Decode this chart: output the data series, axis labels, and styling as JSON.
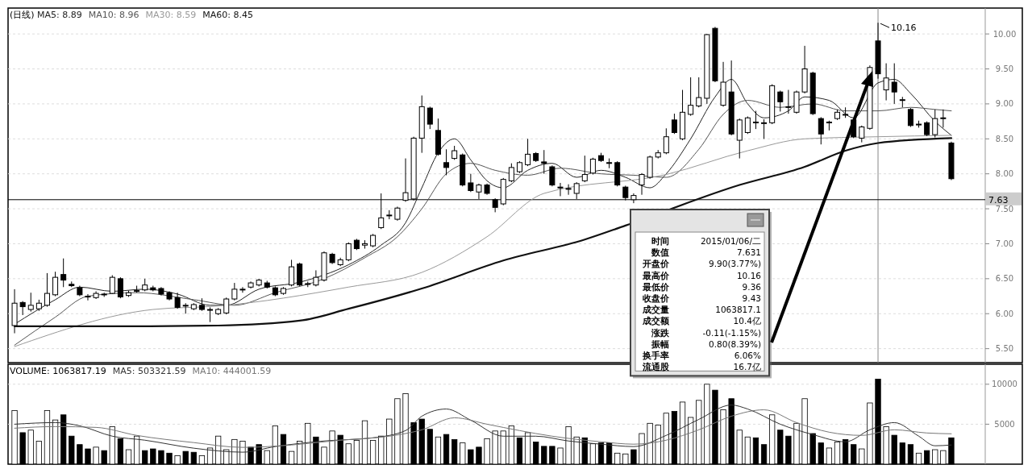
{
  "chart_data": [
    {
      "type": "candlestick",
      "title": "(日线)",
      "categories": [
        null,
        null,
        null,
        null,
        null,
        null,
        null,
        null,
        null,
        null,
        null,
        null,
        null,
        null,
        null,
        null,
        null,
        null,
        null,
        null,
        null,
        null,
        null,
        null,
        null,
        null,
        null,
        null,
        null,
        null,
        null,
        null,
        null,
        null,
        null,
        null,
        null,
        null,
        null,
        null,
        null,
        null,
        null,
        null,
        null,
        null,
        null,
        null,
        null,
        null,
        null,
        null,
        null,
        null,
        null,
        null,
        null,
        null,
        null,
        null,
        null,
        null,
        null,
        null,
        null,
        null,
        null,
        null,
        null,
        null,
        null,
        null,
        null,
        null,
        null,
        null,
        null,
        null,
        null,
        null,
        null,
        null,
        null,
        null,
        null,
        null,
        null,
        null,
        null,
        null,
        null,
        null,
        null,
        null,
        null,
        null,
        null,
        null,
        null,
        null,
        null,
        null,
        null,
        null,
        null,
        null,
        null,
        null,
        null,
        null,
        null,
        null,
        null,
        null,
        null,
        null
      ],
      "ohlc": [
        [
          5.83,
          6.35,
          5.72,
          6.15
        ],
        [
          6.16,
          6.18,
          5.98,
          6.1
        ],
        [
          6.06,
          6.3,
          6.03,
          6.12
        ],
        [
          6.07,
          6.2,
          6.04,
          6.15
        ],
        [
          6.12,
          6.58,
          6.1,
          6.29
        ],
        [
          6.27,
          6.6,
          6.25,
          6.52
        ],
        [
          6.56,
          6.79,
          6.38,
          6.48
        ],
        [
          6.42,
          6.46,
          6.38,
          6.4
        ],
        [
          6.37,
          6.4,
          6.25,
          6.27
        ],
        [
          6.25,
          6.28,
          6.19,
          6.24
        ],
        [
          6.23,
          6.32,
          6.21,
          6.29
        ],
        [
          6.27,
          6.3,
          6.24,
          6.28
        ],
        [
          6.29,
          6.55,
          6.28,
          6.52
        ],
        [
          6.5,
          6.52,
          6.22,
          6.24
        ],
        [
          6.26,
          6.33,
          6.24,
          6.3
        ],
        [
          6.33,
          6.4,
          6.3,
          6.33
        ],
        [
          6.34,
          6.5,
          6.32,
          6.41
        ],
        [
          6.37,
          6.4,
          6.32,
          6.34
        ],
        [
          6.36,
          6.38,
          6.26,
          6.28
        ],
        [
          6.3,
          6.32,
          6.19,
          6.21
        ],
        [
          6.23,
          6.3,
          6.07,
          6.09
        ],
        [
          6.12,
          6.15,
          6.0,
          6.12
        ],
        [
          6.07,
          6.15,
          6.05,
          6.13
        ],
        [
          6.12,
          6.22,
          6.04,
          6.06
        ],
        [
          6.06,
          6.09,
          5.88,
          6.06
        ],
        [
          6.0,
          6.08,
          5.98,
          6.06
        ],
        [
          6.01,
          6.23,
          5.99,
          6.21
        ],
        [
          6.21,
          6.44,
          6.19,
          6.35
        ],
        [
          6.35,
          6.38,
          6.3,
          6.35
        ],
        [
          6.38,
          6.46,
          6.36,
          6.44
        ],
        [
          6.41,
          6.5,
          6.39,
          6.48
        ],
        [
          6.44,
          6.47,
          6.36,
          6.38
        ],
        [
          6.37,
          6.39,
          6.25,
          6.27
        ],
        [
          6.29,
          6.38,
          6.27,
          6.36
        ],
        [
          6.41,
          6.77,
          6.39,
          6.67
        ],
        [
          6.71,
          6.73,
          6.39,
          6.41
        ],
        [
          6.42,
          6.46,
          6.38,
          6.43
        ],
        [
          6.41,
          6.62,
          6.39,
          6.52
        ],
        [
          6.48,
          6.89,
          6.46,
          6.87
        ],
        [
          6.85,
          6.87,
          6.71,
          6.73
        ],
        [
          6.7,
          6.8,
          6.68,
          6.77
        ],
        [
          6.77,
          7.02,
          6.75,
          7.0
        ],
        [
          7.05,
          7.07,
          6.91,
          6.93
        ],
        [
          6.98,
          7.05,
          6.93,
          7.0
        ],
        [
          6.97,
          7.14,
          6.95,
          7.12
        ],
        [
          7.23,
          7.72,
          7.21,
          7.37
        ],
        [
          7.4,
          7.48,
          7.35,
          7.41
        ],
        [
          7.35,
          7.53,
          7.33,
          7.51
        ],
        [
          7.62,
          8.22,
          7.6,
          7.73
        ],
        [
          7.64,
          8.53,
          7.62,
          8.51
        ],
        [
          8.51,
          9.12,
          8.3,
          8.96
        ],
        [
          8.94,
          8.96,
          8.64,
          8.71
        ],
        [
          8.62,
          8.79,
          8.26,
          8.28
        ],
        [
          8.16,
          8.35,
          7.98,
          8.09
        ],
        [
          8.22,
          8.4,
          8.2,
          8.33
        ],
        [
          8.27,
          8.29,
          7.82,
          7.84
        ],
        [
          7.87,
          8.0,
          7.74,
          7.76
        ],
        [
          7.74,
          7.86,
          7.64,
          7.84
        ],
        [
          7.84,
          7.86,
          7.7,
          7.72
        ],
        [
          7.63,
          7.65,
          7.45,
          7.52
        ],
        [
          7.57,
          7.94,
          7.55,
          7.92
        ],
        [
          7.9,
          8.15,
          7.88,
          8.09
        ],
        [
          8.03,
          8.18,
          8.01,
          8.16
        ],
        [
          8.13,
          8.5,
          8.11,
          8.28
        ],
        [
          8.29,
          8.31,
          8.17,
          8.19
        ],
        [
          8.17,
          8.34,
          8.0,
          8.15
        ],
        [
          8.1,
          8.12,
          7.82,
          7.84
        ],
        [
          7.81,
          7.87,
          7.68,
          7.8
        ],
        [
          7.79,
          7.85,
          7.7,
          7.78
        ],
        [
          7.72,
          7.88,
          7.64,
          7.86
        ],
        [
          7.9,
          8.26,
          7.88,
          7.99
        ],
        [
          8.01,
          8.23,
          7.99,
          8.21
        ],
        [
          8.26,
          8.3,
          8.17,
          8.19
        ],
        [
          8.16,
          8.22,
          8.08,
          8.15
        ],
        [
          8.16,
          8.18,
          7.82,
          7.84
        ],
        [
          7.81,
          7.83,
          7.62,
          7.66
        ],
        [
          7.63,
          7.72,
          7.58,
          7.69
        ],
        [
          7.84,
          8.01,
          7.7,
          7.99
        ],
        [
          7.95,
          8.26,
          7.93,
          8.24
        ],
        [
          8.24,
          8.34,
          8.22,
          8.3
        ],
        [
          8.3,
          8.65,
          8.28,
          8.53
        ],
        [
          8.77,
          8.86,
          8.57,
          8.59
        ],
        [
          8.5,
          9.2,
          8.48,
          8.88
        ],
        [
          8.85,
          9.38,
          8.83,
          8.98
        ],
        [
          8.97,
          9.38,
          8.95,
          9.09
        ],
        [
          9.08,
          10.0,
          9.0,
          9.99
        ],
        [
          10.08,
          10.1,
          9.31,
          9.33
        ],
        [
          8.98,
          9.6,
          8.96,
          9.31
        ],
        [
          9.17,
          9.62,
          8.55,
          8.57
        ],
        [
          8.48,
          8.79,
          8.22,
          8.77
        ],
        [
          8.59,
          8.82,
          8.57,
          8.8
        ],
        [
          8.74,
          8.9,
          8.64,
          8.74
        ],
        [
          8.73,
          8.78,
          8.5,
          8.73
        ],
        [
          8.73,
          9.28,
          8.71,
          9.26
        ],
        [
          9.17,
          9.19,
          8.89,
          9.03
        ],
        [
          8.96,
          9.2,
          8.86,
          8.96
        ],
        [
          8.88,
          9.19,
          8.86,
          9.17
        ],
        [
          9.17,
          9.83,
          9.15,
          9.5
        ],
        [
          9.44,
          9.46,
          8.84,
          8.86
        ],
        [
          8.79,
          8.81,
          8.42,
          8.57
        ],
        [
          8.74,
          8.76,
          8.62,
          8.74
        ],
        [
          8.79,
          8.92,
          8.77,
          8.88
        ],
        [
          8.85,
          8.95,
          8.8,
          8.85
        ],
        [
          8.77,
          8.79,
          8.51,
          8.53
        ],
        [
          8.51,
          8.69,
          8.45,
          8.67
        ],
        [
          8.65,
          9.55,
          8.63,
          9.52
        ],
        [
          9.9,
          10.16,
          9.36,
          9.43
        ],
        [
          9.2,
          9.58,
          9.05,
          9.37
        ],
        [
          9.31,
          9.58,
          9.0,
          9.17
        ],
        [
          9.06,
          9.1,
          8.95,
          9.06
        ],
        [
          8.92,
          8.94,
          8.67,
          8.69
        ],
        [
          8.71,
          8.76,
          8.66,
          8.71
        ],
        [
          8.73,
          8.75,
          8.54,
          8.56
        ],
        [
          8.56,
          8.92,
          8.52,
          8.79
        ],
        [
          8.8,
          8.92,
          8.66,
          8.8
        ],
        [
          8.44,
          8.46,
          7.91,
          7.93
        ]
      ],
      "series": [
        {
          "type": "line",
          "name": "MA5: 8.89",
          "color": "#222222",
          "values": [
            5.85,
            null,
            null,
            null,
            null,
            6.2,
            null,
            null,
            6.38,
            null,
            null,
            null,
            6.32,
            null,
            null,
            null,
            6.35,
            null,
            null,
            null,
            6.28,
            null,
            null,
            null,
            6.12,
            null,
            6.12,
            null,
            null,
            null,
            6.35,
            null,
            null,
            null,
            null,
            6.45,
            null,
            null,
            null,
            null,
            null,
            6.7,
            null,
            null,
            null,
            6.98,
            null,
            null,
            7.3,
            null,
            7.8,
            null,
            8.3,
            null,
            8.5,
            null,
            8.2,
            null,
            7.9,
            null,
            7.8,
            null,
            null,
            8.05,
            null,
            null,
            8.15,
            null,
            null,
            7.95,
            null,
            null,
            8.05,
            null,
            null,
            7.95,
            null,
            null,
            7.8,
            null,
            8.0,
            null,
            null,
            8.5,
            null,
            null,
            9.1,
            null,
            9.35,
            null,
            9.0,
            null,
            8.8,
            null,
            null,
            8.9,
            null,
            9.1,
            null,
            null,
            9.05,
            null,
            null,
            8.8,
            null,
            null,
            9.3,
            null,
            9.35,
            null,
            9.15,
            null,
            null,
            8.75,
            null,
            8.55
          ]
        },
        {
          "type": "line",
          "name": "MA10: 8.96",
          "color": "#555555",
          "values": [
            5.55,
            null,
            null,
            null,
            null,
            5.95,
            null,
            null,
            null,
            6.25,
            null,
            null,
            null,
            null,
            null,
            6.3,
            null,
            null,
            null,
            null,
            null,
            null,
            6.2,
            null,
            null,
            null,
            null,
            6.12,
            null,
            null,
            null,
            null,
            6.3,
            null,
            null,
            null,
            null,
            null,
            6.5,
            null,
            null,
            null,
            null,
            6.8,
            null,
            null,
            null,
            7.1,
            null,
            null,
            7.5,
            null,
            null,
            8.0,
            null,
            null,
            8.15,
            null,
            null,
            8.05,
            null,
            null,
            null,
            7.98,
            null,
            null,
            null,
            8.08,
            null,
            null,
            null,
            null,
            8.0,
            null,
            null,
            null,
            7.98,
            null,
            null,
            null,
            7.95,
            null,
            null,
            null,
            8.35,
            null,
            null,
            8.85,
            null,
            null,
            9.05,
            null,
            null,
            null,
            8.95,
            null,
            null,
            null,
            9.0,
            null,
            null,
            null,
            8.9,
            null,
            null,
            null,
            8.9,
            null,
            null,
            null,
            8.95,
            null,
            null,
            8.92,
            null,
            8.9
          ]
        },
        {
          "type": "line",
          "name": "MA30: 8.59",
          "color": "#999999",
          "values": [
            5.53,
            null,
            null,
            null,
            null,
            null,
            null,
            null,
            null,
            null,
            null,
            null,
            null,
            null,
            null,
            null,
            null,
            6.06,
            null,
            null,
            null,
            null,
            null,
            null,
            null,
            6.11,
            null,
            null,
            null,
            null,
            null,
            null,
            null,
            null,
            null,
            null,
            null,
            null,
            null,
            null,
            null,
            6.38,
            null,
            null,
            null,
            null,
            null,
            null,
            null,
            null,
            6.59,
            null,
            null,
            null,
            null,
            null,
            null,
            null,
            7.1,
            null,
            null,
            null,
            null,
            null,
            null,
            7.72,
            null,
            null,
            null,
            null,
            null,
            null,
            null,
            null,
            null,
            null,
            null,
            null,
            null,
            null,
            7.99,
            null,
            null,
            null,
            null,
            null,
            null,
            null,
            null,
            null,
            8.33,
            null,
            null,
            null,
            null,
            null,
            null,
            8.5,
            null,
            null,
            null,
            null,
            null,
            null,
            null,
            null,
            8.53,
            null,
            null,
            null,
            null,
            null,
            null,
            null,
            null,
            8.55
          ]
        },
        {
          "type": "line",
          "name": "MA60: 8.45",
          "color": "#111111",
          "values": [
            5.82,
            null,
            null,
            null,
            null,
            null,
            null,
            null,
            null,
            null,
            null,
            null,
            null,
            null,
            null,
            5.82,
            null,
            null,
            null,
            null,
            null,
            null,
            null,
            null,
            null,
            5.83,
            null,
            null,
            null,
            null,
            null,
            null,
            null,
            null,
            null,
            5.9,
            null,
            null,
            null,
            null,
            null,
            6.07,
            null,
            null,
            null,
            null,
            null,
            null,
            null,
            null,
            6.36,
            null,
            null,
            null,
            null,
            null,
            null,
            null,
            null,
            null,
            6.76,
            null,
            null,
            null,
            null,
            null,
            null,
            null,
            null,
            null,
            7.06,
            null,
            null,
            null,
            null,
            7.26,
            null,
            null,
            null,
            null,
            null,
            null,
            null,
            null,
            null,
            null,
            null,
            null,
            null,
            7.84,
            null,
            null,
            null,
            null,
            null,
            null,
            null,
            8.1,
            null,
            null,
            null,
            null,
            8.33,
            null,
            null,
            null,
            8.44,
            null,
            null,
            null,
            null,
            null,
            null,
            null,
            null,
            8.51
          ]
        }
      ],
      "ylim": [
        5.3,
        10.37
      ],
      "yticks": [
        {
          "value": 5.5,
          "label": "5.50"
        },
        {
          "value": 6,
          "label": "6.00"
        },
        {
          "value": 6.5,
          "label": "6.50"
        },
        {
          "value": 7,
          "label": "7.00"
        },
        {
          "value": 7.5,
          "label": "7.50"
        },
        {
          "value": 8,
          "label": "8.00"
        },
        {
          "value": 8.5,
          "label": "8.50"
        },
        {
          "value": 9,
          "label": "9.00"
        },
        {
          "value": 9.5,
          "label": "9.50"
        },
        {
          "value": 10,
          "label": "10.00"
        }
      ],
      "grid": "y",
      "legend": "top left",
      "marker": "none",
      "ref_lines": [
        {
          "axis": "y",
          "value": 7.63,
          "label": "7.63",
          "color": "#000000"
        }
      ],
      "annotations": [
        "10.16",
        "时间",
        "2015/01/06/二",
        "数值",
        "7.631",
        "开盘价",
        "9.90(3.77%)",
        "最高价",
        "10.16",
        "最低价",
        "9.36",
        "收盘价",
        "9.43",
        "成交量",
        "1063817.1",
        "成交额",
        "10.4亿",
        "涨跌",
        "-0.11(-1.15%)",
        "振幅",
        "0.80(8.39%)",
        "换手率",
        "6.06%",
        "流通股",
        "16.7亿"
      ]
    },
    {
      "type": "bar",
      "categories": [
        null,
        null,
        null,
        null,
        null,
        null,
        null,
        null,
        null,
        null,
        null,
        null,
        null,
        null,
        null,
        null,
        null,
        null,
        null,
        null,
        null,
        null,
        null,
        null,
        null,
        null,
        null,
        null,
        null,
        null,
        null,
        null,
        null,
        null,
        null,
        null,
        null,
        null,
        null,
        null,
        null,
        null,
        null,
        null,
        null,
        null,
        null,
        null,
        null,
        null,
        null,
        null,
        null,
        null,
        null,
        null,
        null,
        null,
        null,
        null,
        null,
        null,
        null,
        null,
        null,
        null,
        null,
        null,
        null,
        null,
        null,
        null,
        null,
        null,
        null,
        null,
        null,
        null,
        null,
        null,
        null,
        null,
        null,
        null,
        null,
        null,
        null,
        null,
        null,
        null,
        null,
        null,
        null,
        null,
        null,
        null,
        null,
        null,
        null,
        null,
        null,
        null,
        null,
        null,
        null,
        null,
        null,
        null,
        null,
        null,
        null,
        null,
        null,
        null,
        null,
        null
      ],
      "series": [
        {
          "type": "bar",
          "name": "VOLUME: 1063817.19",
          "color": "#000000",
          "values": [
            6700,
            3940,
            4260,
            2870,
            6700,
            5530,
            6170,
            3510,
            2450,
            1910,
            2130,
            1700,
            4680,
            3190,
            1810,
            3510,
            1700,
            1910,
            1700,
            1380,
            1060,
            1600,
            1490,
            1060,
            2020,
            3510,
            1810,
            3090,
            2870,
            2130,
            2450,
            1700,
            4790,
            3720,
            1600,
            2870,
            5110,
            3400,
            2130,
            4150,
            3620,
            2550,
            2980,
            5430,
            2980,
            3510,
            5640,
            8190,
            8830,
            5210,
            5640,
            4360,
            3400,
            3720,
            3090,
            2660,
            1810,
            2130,
            3190,
            4150,
            4150,
            4790,
            3300,
            3940,
            2770,
            2230,
            2230,
            2020,
            4680,
            3400,
            3300,
            2550,
            2660,
            2660,
            1380,
            1280,
            1810,
            3830,
            5110,
            4890,
            6380,
            6600,
            7770,
            5850,
            7980,
            10000,
            9260,
            6810,
            8190,
            4260,
            3400,
            3300,
            2450,
            6170,
            4260,
            3510,
            5110,
            8190,
            3830,
            2660,
            2020,
            2770,
            3090,
            2450,
            1910,
            7660,
            10638,
            4680,
            3620,
            2660,
            2450,
            1380,
            1700,
            1810,
            1700,
            3300
          ],
          "colors": [
            "#ffffff",
            "#000000",
            "#ffffff",
            "#ffffff",
            "#ffffff",
            "#ffffff",
            "#000000",
            "#000000",
            "#000000",
            "#000000",
            "#ffffff",
            "#000000",
            "#ffffff",
            "#000000",
            "#ffffff",
            "#ffffff",
            "#000000",
            "#000000",
            "#000000",
            "#000000",
            "#ffffff",
            "#000000",
            "#000000",
            "#ffffff",
            "#ffffff",
            "#ffffff",
            "#ffffff",
            "#ffffff",
            "#ffffff",
            "#000000",
            "#000000",
            "#ffffff",
            "#ffffff",
            "#000000",
            "#ffffff",
            "#ffffff",
            "#ffffff",
            "#000000",
            "#ffffff",
            "#ffffff",
            "#000000",
            "#ffffff",
            "#ffffff",
            "#ffffff",
            "#ffffff",
            "#ffffff",
            "#ffffff",
            "#ffffff",
            "#ffffff",
            "#000000",
            "#000000",
            "#000000",
            "#ffffff",
            "#000000",
            "#000000",
            "#ffffff",
            "#000000",
            "#000000",
            "#ffffff",
            "#ffffff",
            "#ffffff",
            "#ffffff",
            "#000000",
            "#ffffff",
            "#000000",
            "#000000",
            "#000000",
            "#ffffff",
            "#ffffff",
            "#ffffff",
            "#000000",
            "#ffffff",
            "#000000",
            "#000000",
            "#ffffff",
            "#ffffff",
            "#000000",
            "#ffffff",
            "#ffffff",
            "#ffffff",
            "#ffffff",
            "#000000",
            "#ffffff",
            "#ffffff",
            "#ffffff",
            "#ffffff",
            "#000000",
            "#ffffff",
            "#000000",
            "#ffffff",
            "#ffffff",
            "#000000",
            "#000000",
            "#ffffff",
            "#000000",
            "#000000",
            "#ffffff",
            "#ffffff",
            "#000000",
            "#000000",
            "#ffffff",
            "#ffffff",
            "#000000",
            "#000000",
            "#ffffff",
            "#ffffff",
            "#000000",
            "#ffffff",
            "#000000",
            "#000000",
            "#000000",
            "#ffffff",
            "#000000",
            "#ffffff",
            "#ffffff",
            "#000000"
          ]
        },
        {
          "type": "line",
          "name": "MA5: 503321.59",
          "color": "#333333",
          "values": [
            5000,
            null,
            null,
            null,
            null,
            5200,
            null,
            null,
            4800,
            null,
            null,
            null,
            3500,
            null,
            null,
            null,
            3000,
            null,
            null,
            null,
            null,
            null,
            2000,
            null,
            null,
            null,
            null,
            null,
            1500,
            null,
            null,
            null,
            2200,
            null,
            null,
            null,
            null,
            null,
            2900,
            null,
            null,
            null,
            null,
            null,
            3300,
            null,
            null,
            null,
            4200,
            null,
            6000,
            null,
            null,
            6900,
            null,
            null,
            5500,
            null,
            null,
            null,
            3500,
            null,
            null,
            null,
            3500,
            null,
            null,
            null,
            2900,
            null,
            null,
            null,
            2500,
            null,
            null,
            null,
            2200,
            null,
            null,
            null,
            3600,
            null,
            null,
            null,
            5600,
            null,
            null,
            null,
            7400,
            null,
            6900,
            null,
            null,
            null,
            5000,
            null,
            null,
            null,
            3700,
            null,
            null,
            null,
            2800,
            null,
            null,
            4300,
            null,
            null,
            5200,
            null,
            null,
            3500,
            null,
            2300,
            null,
            2400
          ]
        },
        {
          "type": "line",
          "name": "MA10: 444001.59",
          "color": "#777777",
          "values": [
            4500,
            null,
            null,
            null,
            null,
            4700,
            null,
            null,
            null,
            null,
            4600,
            null,
            null,
            null,
            null,
            3600,
            null,
            null,
            null,
            null,
            null,
            null,
            2700,
            null,
            null,
            null,
            null,
            null,
            2100,
            null,
            null,
            null,
            null,
            null,
            2400,
            null,
            null,
            null,
            null,
            null,
            3000,
            null,
            null,
            null,
            null,
            null,
            3500,
            null,
            null,
            null,
            4300,
            null,
            null,
            null,
            5800,
            null,
            null,
            null,
            5000,
            null,
            null,
            null,
            4200,
            null,
            null,
            null,
            3500,
            null,
            null,
            null,
            null,
            null,
            2800,
            null,
            null,
            null,
            2500,
            null,
            null,
            null,
            3000,
            null,
            null,
            null,
            4300,
            null,
            null,
            null,
            6000,
            null,
            null,
            null,
            6800,
            null,
            null,
            null,
            5200,
            null,
            null,
            null,
            4000,
            null,
            null,
            null,
            3600,
            null,
            null,
            null,
            4300,
            null,
            null,
            null,
            3900,
            null,
            null,
            3800
          ]
        }
      ],
      "ylim": [
        0,
        12500
      ],
      "yticks": [
        5000,
        10000
      ],
      "grid": "y",
      "legend": "top left",
      "marker": "none"
    }
  ]
}
